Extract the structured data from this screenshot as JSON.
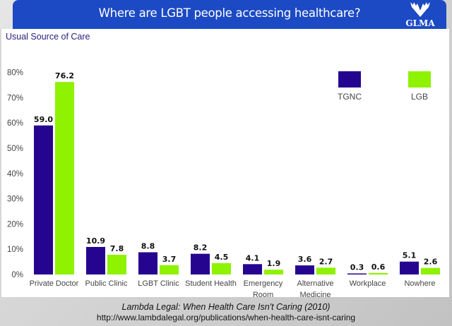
{
  "header": {
    "title": "Where are LGBT people accessing healthcare?",
    "logo_text": "GLMA",
    "logo_icon": "wings-icon",
    "background_color": "#1c4ac4"
  },
  "chart_data": {
    "type": "bar",
    "title": "Usual Source of Care",
    "xlabel": "",
    "ylabel": "",
    "ylim": [
      0,
      80
    ],
    "yticks": [
      "0%",
      "10%",
      "20%",
      "30%",
      "40%",
      "50%",
      "60%",
      "70%",
      "80%"
    ],
    "grid": false,
    "legend_position": "top-right",
    "categories": [
      [
        "Private Doctor"
      ],
      [
        "Public Clinic"
      ],
      [
        "LGBT Clinic"
      ],
      [
        "Student Health"
      ],
      [
        "Emergency",
        "Room"
      ],
      [
        "Alternative",
        "Medicine"
      ],
      [
        "Workplace"
      ],
      [
        "Nowhere"
      ]
    ],
    "series": [
      {
        "name": "TGNC",
        "color": "#25048f",
        "values": [
          59.0,
          10.9,
          8.8,
          8.2,
          4.1,
          3.6,
          0.3,
          5.1
        ],
        "labels": [
          "59.0",
          "10.9",
          "8.8",
          "8.2",
          "4.1",
          "3.6",
          "0.3",
          "5.1"
        ]
      },
      {
        "name": "LGB",
        "color": "#8ef200",
        "values": [
          76.2,
          7.8,
          3.7,
          4.5,
          1.9,
          2.7,
          0.6,
          2.6
        ],
        "labels": [
          "76.2",
          "7.8",
          "3.7",
          "4.5",
          "1.9",
          "2.7",
          "0.6",
          "2.6"
        ]
      }
    ]
  },
  "footer": {
    "citation": "Lambda Legal: When Health Care Isn't Caring (2010)",
    "url": "http://www.lambdalegal.org/publications/when-health-care-isnt-caring"
  }
}
